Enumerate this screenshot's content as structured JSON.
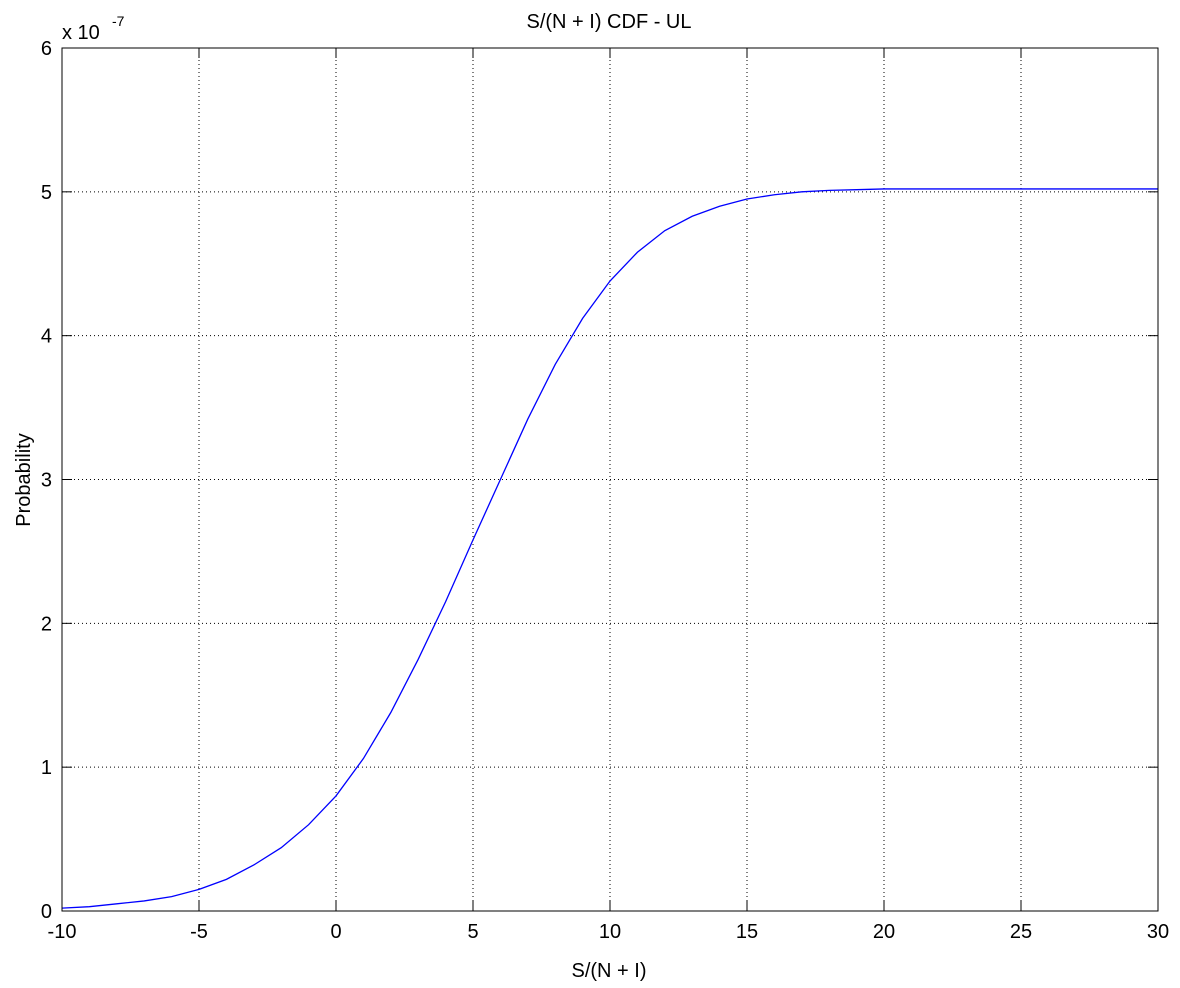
{
  "chart_data": {
    "type": "line",
    "title": "S/(N + I) CDF - UL",
    "xlabel": "S/(N + I)",
    "ylabel": "Probability",
    "exponent_base": "x 10",
    "exponent_power": "-7",
    "xlim": [
      -10,
      30
    ],
    "ylim": [
      0,
      6
    ],
    "xticks": [
      -10,
      -5,
      0,
      5,
      10,
      15,
      20,
      25,
      30
    ],
    "yticks": [
      0,
      1,
      2,
      3,
      4,
      5,
      6
    ],
    "grid": true,
    "series_color": "#0000ff",
    "series": [
      {
        "x": [
          -10,
          -9,
          -8,
          -7,
          -6,
          -5,
          -4,
          -3,
          -2,
          -1,
          0,
          1,
          2,
          3,
          4,
          5,
          6,
          7,
          8,
          9,
          10,
          11,
          12,
          13,
          14,
          15,
          16,
          17,
          18,
          19,
          20,
          22,
          24,
          26,
          28,
          30
        ],
        "y": [
          0.02,
          0.03,
          0.05,
          0.07,
          0.1,
          0.15,
          0.22,
          0.32,
          0.44,
          0.6,
          0.8,
          1.06,
          1.38,
          1.75,
          2.15,
          2.58,
          3.0,
          3.42,
          3.8,
          4.12,
          4.38,
          4.58,
          4.73,
          4.83,
          4.9,
          4.95,
          4.98,
          5.0,
          5.01,
          5.015,
          5.02,
          5.02,
          5.02,
          5.02,
          5.02,
          5.02
        ]
      }
    ]
  }
}
